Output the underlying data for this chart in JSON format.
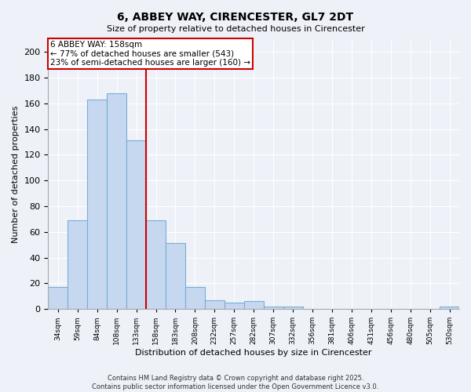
{
  "title": "6, ABBEY WAY, CIRENCESTER, GL7 2DT",
  "subtitle": "Size of property relative to detached houses in Cirencester",
  "xlabel": "Distribution of detached houses by size in Cirencester",
  "ylabel": "Number of detached properties",
  "categories": [
    "34sqm",
    "59sqm",
    "84sqm",
    "108sqm",
    "133sqm",
    "158sqm",
    "183sqm",
    "208sqm",
    "232sqm",
    "257sqm",
    "282sqm",
    "307sqm",
    "332sqm",
    "356sqm",
    "381sqm",
    "406sqm",
    "431sqm",
    "456sqm",
    "480sqm",
    "505sqm",
    "530sqm"
  ],
  "values": [
    17,
    69,
    163,
    168,
    131,
    69,
    51,
    17,
    7,
    5,
    6,
    2,
    2,
    0,
    0,
    0,
    0,
    0,
    0,
    0,
    2
  ],
  "bar_color": "#c5d8f0",
  "bar_edge_color": "#7aadd4",
  "property_line_index": 5,
  "annotation_line1": "6 ABBEY WAY: 158sqm",
  "annotation_line2": "← 77% of detached houses are smaller (543)",
  "annotation_line3": "23% of semi-detached houses are larger (160) →",
  "annotation_box_facecolor": "#ffffff",
  "annotation_box_edgecolor": "#cc0000",
  "property_line_color": "#cc0000",
  "ylim": [
    0,
    210
  ],
  "yticks": [
    0,
    20,
    40,
    60,
    80,
    100,
    120,
    140,
    160,
    180,
    200
  ],
  "background_color": "#eef1f8",
  "grid_color": "#ffffff",
  "footer_line1": "Contains HM Land Registry data © Crown copyright and database right 2025.",
  "footer_line2": "Contains public sector information licensed under the Open Government Licence v3.0."
}
